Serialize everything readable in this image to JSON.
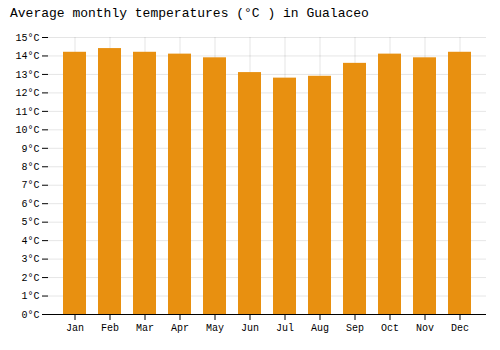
{
  "chart_data": {
    "type": "bar",
    "title": "Average monthly temperatures (°C ) in Gualaceo",
    "categories": [
      "Jan",
      "Feb",
      "Mar",
      "Apr",
      "May",
      "Jun",
      "Jul",
      "Aug",
      "Sep",
      "Oct",
      "Nov",
      "Dec"
    ],
    "values": [
      14.2,
      14.4,
      14.2,
      14.1,
      13.9,
      13.1,
      12.8,
      12.9,
      13.6,
      14.1,
      13.9,
      14.2
    ],
    "color": "#E89010",
    "ylim": [
      0,
      15
    ],
    "yticks": [
      {
        "value": 0,
        "label": "0°C"
      },
      {
        "value": 1,
        "label": "1°C"
      },
      {
        "value": 2,
        "label": "2°C"
      },
      {
        "value": 3,
        "label": "3°C"
      },
      {
        "value": 4,
        "label": "4°C"
      },
      {
        "value": 5,
        "label": "5°C"
      },
      {
        "value": 6,
        "label": "6°C"
      },
      {
        "value": 7,
        "label": "7°C"
      },
      {
        "value": 8,
        "label": "8°C"
      },
      {
        "value": 9,
        "label": "9°C"
      },
      {
        "value": 10,
        "label": "10°C"
      },
      {
        "value": 11,
        "label": "11°C"
      },
      {
        "value": 12,
        "label": "12°C"
      },
      {
        "value": 13,
        "label": "13°C"
      },
      {
        "value": 14,
        "label": "14°C"
      },
      {
        "value": 15,
        "label": "15°C"
      }
    ],
    "grid": true
  }
}
